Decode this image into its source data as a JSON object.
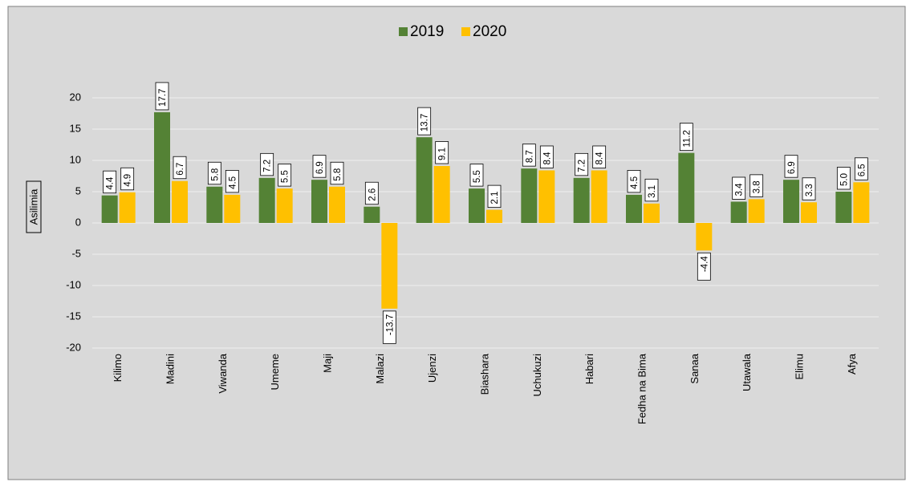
{
  "chart_data": {
    "type": "bar",
    "y_label": "Asilimia",
    "categories": [
      "Kilimo",
      "Madini",
      "Viwanda",
      "Umeme",
      "Maji",
      "Malazi",
      "Ujenzi",
      "Biashara",
      "Uchukuzi",
      "Habari",
      "Fedha na Bima",
      "Sanaa",
      "Utawala",
      "Elimu",
      "Afya"
    ],
    "series": [
      {
        "name": "2019",
        "color": "#548235",
        "values": [
          4.4,
          17.7,
          5.8,
          7.2,
          6.9,
          2.6,
          13.7,
          5.5,
          8.7,
          7.2,
          4.5,
          11.2,
          3.4,
          6.9,
          5
        ],
        "value_labels": [
          "4.4",
          "17.7",
          "5.8",
          "7.2",
          "6.9",
          "2.6",
          "13.7",
          "5.5",
          "8.7",
          "7.2",
          "4.5",
          "11.2",
          "3.4",
          "6.9",
          "5.0"
        ]
      },
      {
        "name": "2020",
        "color": "#ffc000",
        "values": [
          4.9,
          6.7,
          4.5,
          5.5,
          5.8,
          -13.7,
          9.1,
          2.1,
          8.4,
          8.4,
          3.1,
          -4.4,
          3.8,
          3.3,
          6.5
        ],
        "value_labels": [
          "4.9",
          "6.7",
          "4.5",
          "5.5",
          "5.8",
          "-13.7",
          "9.1",
          "2.1",
          "8.4",
          "8.4",
          "3.1",
          "-4.4",
          "3.8",
          "3.3",
          "6.5"
        ]
      }
    ],
    "ylim": [
      -20,
      20
    ],
    "yticks": [
      -20,
      -15,
      -10,
      -5,
      0,
      5,
      10,
      15,
      20
    ],
    "grid": true,
    "legend": "top"
  }
}
